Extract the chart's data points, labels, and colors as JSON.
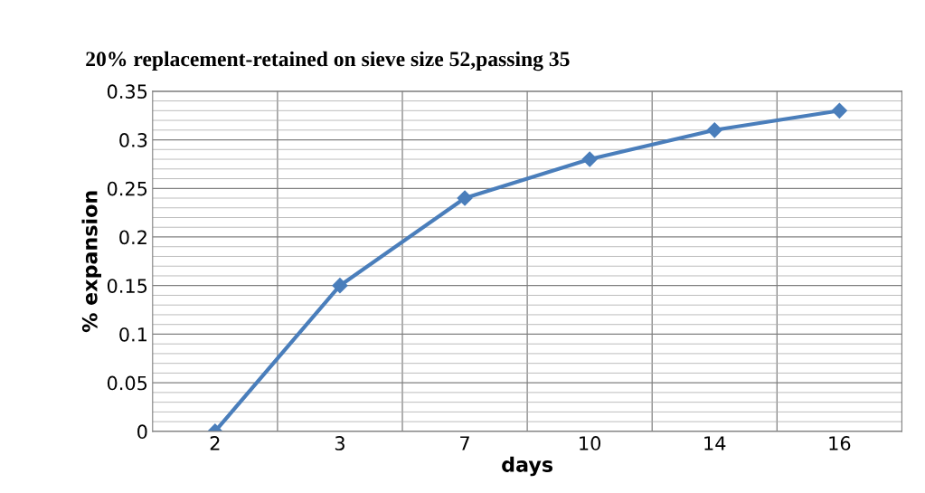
{
  "chart_data": {
    "type": "line",
    "title": "20% replacement-retained on sieve size 52,passing 35",
    "xlabel": "days",
    "ylabel": "% expansion",
    "categories": [
      "2",
      "3",
      "7",
      "10",
      "14",
      "16"
    ],
    "series": [
      {
        "color": "#4a7ebb",
        "values": [
          0,
          0.15,
          0.24,
          0.28,
          0.31,
          0.33
        ]
      }
    ],
    "ylim": [
      0,
      0.35
    ],
    "yticks": [
      0,
      0.05,
      0.1,
      0.15,
      0.2,
      0.25,
      0.3,
      0.35
    ],
    "grid": true,
    "marker": "diamond",
    "line_style": "solid"
  }
}
